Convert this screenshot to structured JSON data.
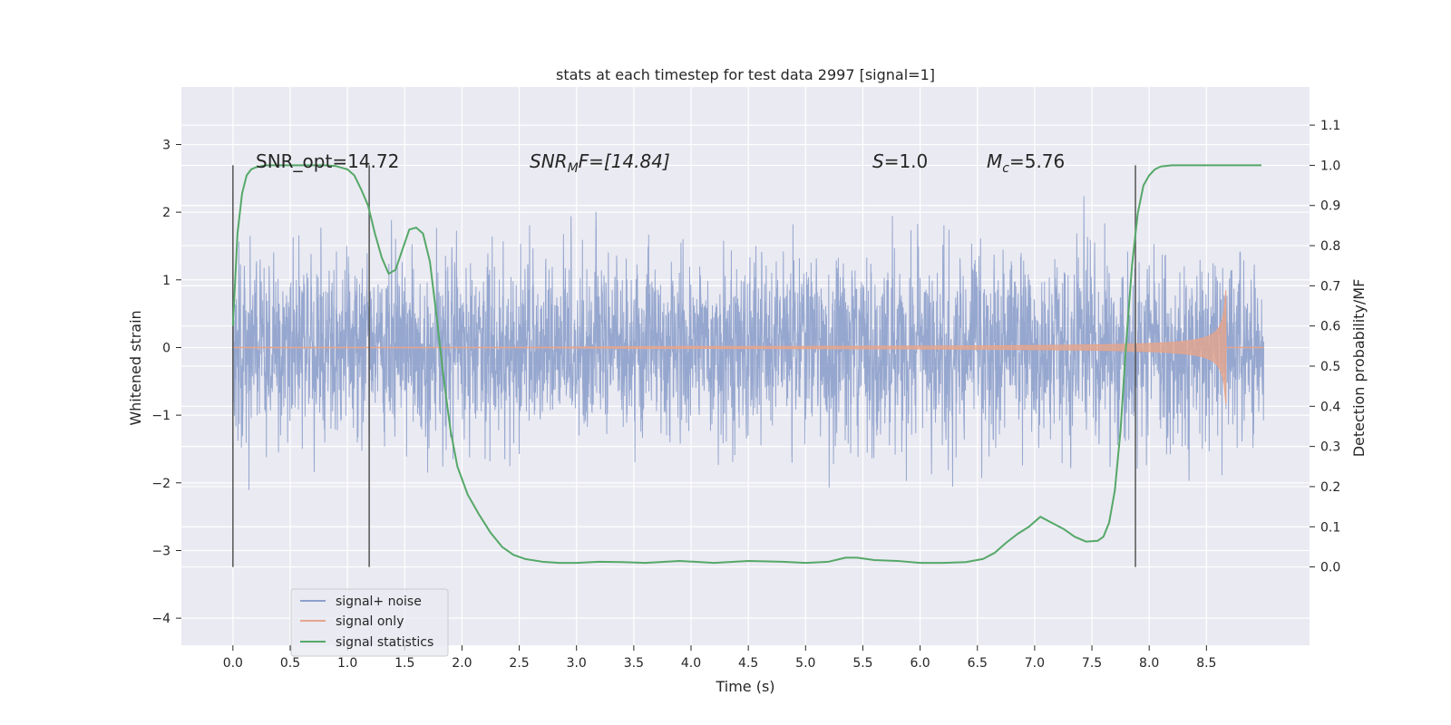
{
  "chart_data": {
    "type": "line",
    "title": "stats at each timestep for test data 2997 [signal=1]",
    "xlabel": "Time (s)",
    "ylabel": "Whitened strain",
    "ylabel_right": "Detection probability/MF",
    "xlim": [
      -0.45,
      9.4
    ],
    "ylim": [
      -4.4,
      3.85
    ],
    "ylim_right": [
      -0.195,
      1.195
    ],
    "x_ticks": [
      "0.0",
      "0.5",
      "1.0",
      "1.5",
      "2.0",
      "2.5",
      "3.0",
      "3.5",
      "4.0",
      "4.5",
      "5.0",
      "5.5",
      "6.0",
      "6.5",
      "7.0",
      "7.5",
      "8.0",
      "8.5"
    ],
    "y_ticks": [
      "−4",
      "−3",
      "−2",
      "−1",
      "0",
      "1",
      "2",
      "3"
    ],
    "y_ticks_right": [
      "0.0",
      "0.1",
      "0.2",
      "0.3",
      "0.4",
      "0.5",
      "0.6",
      "0.7",
      "0.8",
      "0.9",
      "1.0",
      "1.1"
    ],
    "grid": true,
    "legend_position": "lower-left",
    "annotations": {
      "snr_opt": "SNR_opt=14.72",
      "snr_mf_base": "SNR",
      "snr_mf_sub": "M",
      "snr_mf_rest": "F=[14.84]",
      "s_var": "S",
      "s_rest": "=1.0",
      "mc_var": "M",
      "mc_sub": "c",
      "mc_rest": "=5.76"
    },
    "vertical_markers": [
      0.0,
      1.19,
      7.88
    ],
    "series": [
      {
        "name": "signal+ noise",
        "color": "#8da0cb",
        "duration": 9.0,
        "envelope_typical": 1.5,
        "envelope_peak": 3.5
      },
      {
        "name": "signal only",
        "color": "#e5a58c",
        "t_start": 3.0,
        "t_end": 8.67,
        "amp_start": 0.0,
        "amp_end": 1.5
      },
      {
        "name": "signal statistics",
        "color": "#55a868",
        "x": [
          0.0,
          0.04,
          0.08,
          0.12,
          0.16,
          0.2,
          0.25,
          0.3,
          0.4,
          0.5,
          0.6,
          0.7,
          0.8,
          0.9,
          1.0,
          1.06,
          1.12,
          1.18,
          1.24,
          1.3,
          1.36,
          1.42,
          1.48,
          1.54,
          1.6,
          1.66,
          1.72,
          1.78,
          1.84,
          1.9,
          1.96,
          2.05,
          2.15,
          2.25,
          2.35,
          2.45,
          2.55,
          2.7,
          2.85,
          3.0,
          3.2,
          3.4,
          3.6,
          3.9,
          4.2,
          4.5,
          4.8,
          5.0,
          5.2,
          5.35,
          5.45,
          5.6,
          5.8,
          6.0,
          6.2,
          6.4,
          6.55,
          6.65,
          6.75,
          6.85,
          6.95,
          7.05,
          7.15,
          7.25,
          7.35,
          7.45,
          7.55,
          7.6,
          7.65,
          7.7,
          7.75,
          7.8,
          7.85,
          7.9,
          7.95,
          8.0,
          8.05,
          8.1,
          8.2,
          8.3,
          8.5,
          8.7,
          8.9,
          8.98
        ],
        "y": [
          0.6,
          0.83,
          0.93,
          0.975,
          0.99,
          0.995,
          0.998,
          1.0,
          1.0,
          1.0,
          1.0,
          1.0,
          1.0,
          0.998,
          0.99,
          0.975,
          0.94,
          0.9,
          0.83,
          0.77,
          0.73,
          0.74,
          0.79,
          0.84,
          0.845,
          0.83,
          0.76,
          0.62,
          0.47,
          0.34,
          0.25,
          0.18,
          0.13,
          0.085,
          0.05,
          0.03,
          0.02,
          0.013,
          0.01,
          0.01,
          0.013,
          0.012,
          0.01,
          0.015,
          0.01,
          0.015,
          0.013,
          0.01,
          0.013,
          0.023,
          0.023,
          0.017,
          0.015,
          0.01,
          0.01,
          0.012,
          0.02,
          0.035,
          0.06,
          0.082,
          0.1,
          0.125,
          0.11,
          0.095,
          0.075,
          0.063,
          0.065,
          0.075,
          0.11,
          0.19,
          0.34,
          0.56,
          0.75,
          0.88,
          0.95,
          0.975,
          0.99,
          0.997,
          1.0,
          1.0,
          1.0,
          1.0,
          1.0,
          1.0
        ]
      }
    ]
  }
}
